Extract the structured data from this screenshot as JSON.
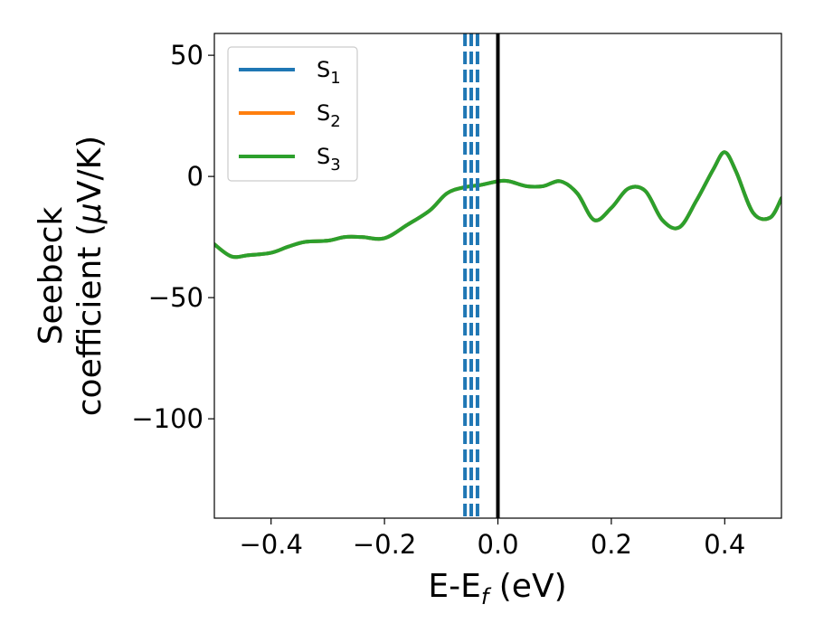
{
  "chart_data": {
    "type": "line",
    "title": "",
    "xlabel": "E-E",
    "xlabel_sub": "f",
    "xlabel_unit": " (eV)",
    "ylabel_line1": "Seebeck",
    "ylabel_line2_pre": "coefficient  (",
    "ylabel_mu": "μ",
    "ylabel_line2_post": "V/K)",
    "xlim": [
      -0.5,
      0.5
    ],
    "ylim": [
      -141,
      59
    ],
    "xticks": [
      -0.4,
      -0.2,
      0.0,
      0.2,
      0.4
    ],
    "xtick_labels": [
      "−0.4",
      "−0.2",
      "0.0",
      "0.2",
      "0.4"
    ],
    "yticks": [
      50,
      0,
      -50,
      -100
    ],
    "ytick_labels": [
      "50",
      "0",
      "−50",
      "−100"
    ],
    "grid": false,
    "legend_position": "top-left",
    "series": [
      {
        "name": "S1",
        "label_main": "S",
        "label_sub": "1",
        "color": "#1f77b4",
        "x": [
          -0.5,
          -0.47,
          -0.44,
          -0.4,
          -0.37,
          -0.34,
          -0.3,
          -0.27,
          -0.24,
          -0.2,
          -0.16,
          -0.12,
          -0.09,
          -0.06,
          -0.03,
          0.0,
          0.02,
          0.05,
          0.08,
          0.11,
          0.14,
          0.17,
          0.2,
          0.23,
          0.26,
          0.29,
          0.32,
          0.35,
          0.38,
          0.4,
          0.42,
          0.45,
          0.48,
          0.5
        ],
        "y": [
          -28,
          -33,
          -32.5,
          -31.5,
          -29,
          -27,
          -26.5,
          -25,
          -25,
          -25.5,
          -20,
          -14,
          -7,
          -4.5,
          -3.5,
          -2,
          -2,
          -4,
          -4,
          -2,
          -7,
          -18,
          -13,
          -5,
          -6,
          -18,
          -21,
          -10,
          3,
          10,
          2,
          -15,
          -17,
          -9
        ]
      },
      {
        "name": "S2",
        "label_main": "S",
        "label_sub": "2",
        "color": "#ff7f0e",
        "x": [
          -0.5,
          -0.47,
          -0.44,
          -0.4,
          -0.37,
          -0.34,
          -0.3,
          -0.27,
          -0.24,
          -0.2,
          -0.16,
          -0.12,
          -0.09,
          -0.06,
          -0.03,
          0.0,
          0.02,
          0.05,
          0.08,
          0.11,
          0.14,
          0.17,
          0.2,
          0.23,
          0.26,
          0.29,
          0.32,
          0.35,
          0.38,
          0.4,
          0.42,
          0.45,
          0.48,
          0.5
        ],
        "y": [
          -28,
          -33,
          -32.5,
          -31.5,
          -29,
          -27,
          -26.5,
          -25,
          -25,
          -25.5,
          -20,
          -14,
          -7,
          -4.5,
          -3.5,
          -2,
          -2,
          -4,
          -4,
          -2,
          -7,
          -18,
          -13,
          -5,
          -6,
          -18,
          -21,
          -10,
          3,
          10,
          2,
          -15,
          -17,
          -9
        ]
      },
      {
        "name": "S3",
        "label_main": "S",
        "label_sub": "3",
        "color": "#2ca02c",
        "x": [
          -0.5,
          -0.47,
          -0.44,
          -0.4,
          -0.37,
          -0.34,
          -0.3,
          -0.27,
          -0.24,
          -0.2,
          -0.16,
          -0.12,
          -0.09,
          -0.06,
          -0.03,
          0.0,
          0.02,
          0.05,
          0.08,
          0.11,
          0.14,
          0.17,
          0.2,
          0.23,
          0.26,
          0.29,
          0.32,
          0.35,
          0.38,
          0.4,
          0.42,
          0.45,
          0.48,
          0.5
        ],
        "y": [
          -28,
          -33,
          -32.5,
          -31.5,
          -29,
          -27,
          -26.5,
          -25,
          -25,
          -25.5,
          -20,
          -14,
          -7,
          -4.5,
          -3.5,
          -2,
          -2,
          -4,
          -4,
          -2,
          -7,
          -18,
          -13,
          -5,
          -6,
          -18,
          -21,
          -10,
          3,
          10,
          2,
          -15,
          -17,
          -9
        ]
      }
    ],
    "vlines": [
      {
        "x": -0.058,
        "style": "dashed",
        "color": "#1f77b4"
      },
      {
        "x": -0.047,
        "style": "dashed",
        "color": "#1f77b4"
      },
      {
        "x": -0.036,
        "style": "dashed",
        "color": "#1f77b4"
      },
      {
        "x": 0.0,
        "style": "solid",
        "color": "#000000"
      }
    ]
  }
}
